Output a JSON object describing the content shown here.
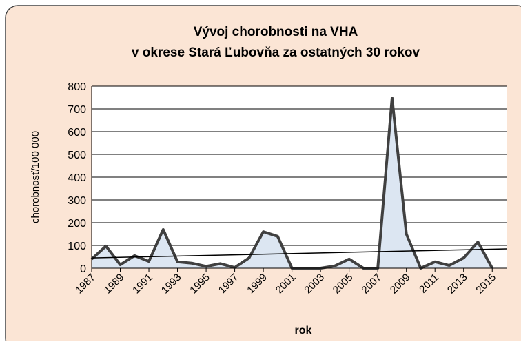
{
  "chart_data": {
    "type": "area",
    "title": "Vývoj chorobnosti na VHA",
    "subtitle": "v okrese Stará Ľubovňa za ostatných 30 rokov",
    "x_label": "rok",
    "y_label": "chorobnosť/100 000",
    "x": [
      1987,
      1988,
      1989,
      1990,
      1991,
      1992,
      1993,
      1994,
      1995,
      1996,
      1997,
      1998,
      1999,
      2000,
      2001,
      2002,
      2003,
      2004,
      2005,
      2006,
      2007,
      2008,
      2009,
      2010,
      2011,
      2012,
      2013,
      2014,
      2015
    ],
    "series": [
      {
        "color": "#404040",
        "fill": "#dce6f2",
        "values": [
          40,
          97,
          15,
          55,
          30,
          170,
          28,
          22,
          8,
          20,
          3,
          45,
          160,
          140,
          0,
          0,
          0,
          10,
          40,
          0,
          0,
          748,
          150,
          0,
          28,
          12,
          45,
          115,
          0
        ]
      }
    ],
    "trend": {
      "x": [
        1987,
        2016
      ],
      "values": [
        45,
        85
      ],
      "color": "#000000"
    },
    "xlim": [
      1987,
      2016
    ],
    "xticks": [
      1987,
      1989,
      1991,
      1993,
      1995,
      1997,
      1999,
      2001,
      2003,
      2005,
      2007,
      2009,
      2011,
      2013,
      2015
    ],
    "ylim": [
      0,
      800
    ],
    "yticks": [
      0,
      100,
      200,
      300,
      400,
      500,
      600,
      700,
      800
    ],
    "grid": true
  }
}
